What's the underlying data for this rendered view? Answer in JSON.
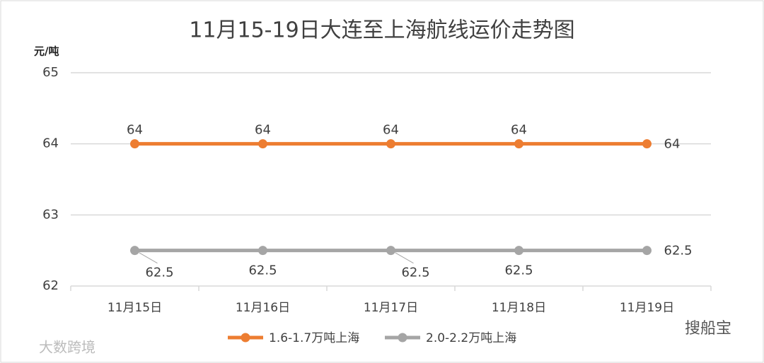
{
  "chart_data": {
    "type": "line",
    "title": "11月15-19日大连至上海航线运价走势图",
    "y_label": "元/吨",
    "categories": [
      "11月15日",
      "11月16日",
      "11月17日",
      "11月18日",
      "11月19日"
    ],
    "series": [
      {
        "name": "1.6-1.7万吨上海",
        "color": "#ed7d31",
        "values": [
          64,
          64,
          64,
          64,
          64
        ]
      },
      {
        "name": "2.0-2.2万吨上海",
        "color": "#a5a5a5",
        "values": [
          62.5,
          62.5,
          62.5,
          62.5,
          62.5
        ]
      }
    ],
    "ylim": [
      62,
      65
    ],
    "yticks": [
      62,
      63,
      64,
      65
    ],
    "grid": true,
    "legend": "bottom",
    "data_labels": true
  },
  "watermarks": [
    "大数跨境",
    "搜船宝"
  ]
}
